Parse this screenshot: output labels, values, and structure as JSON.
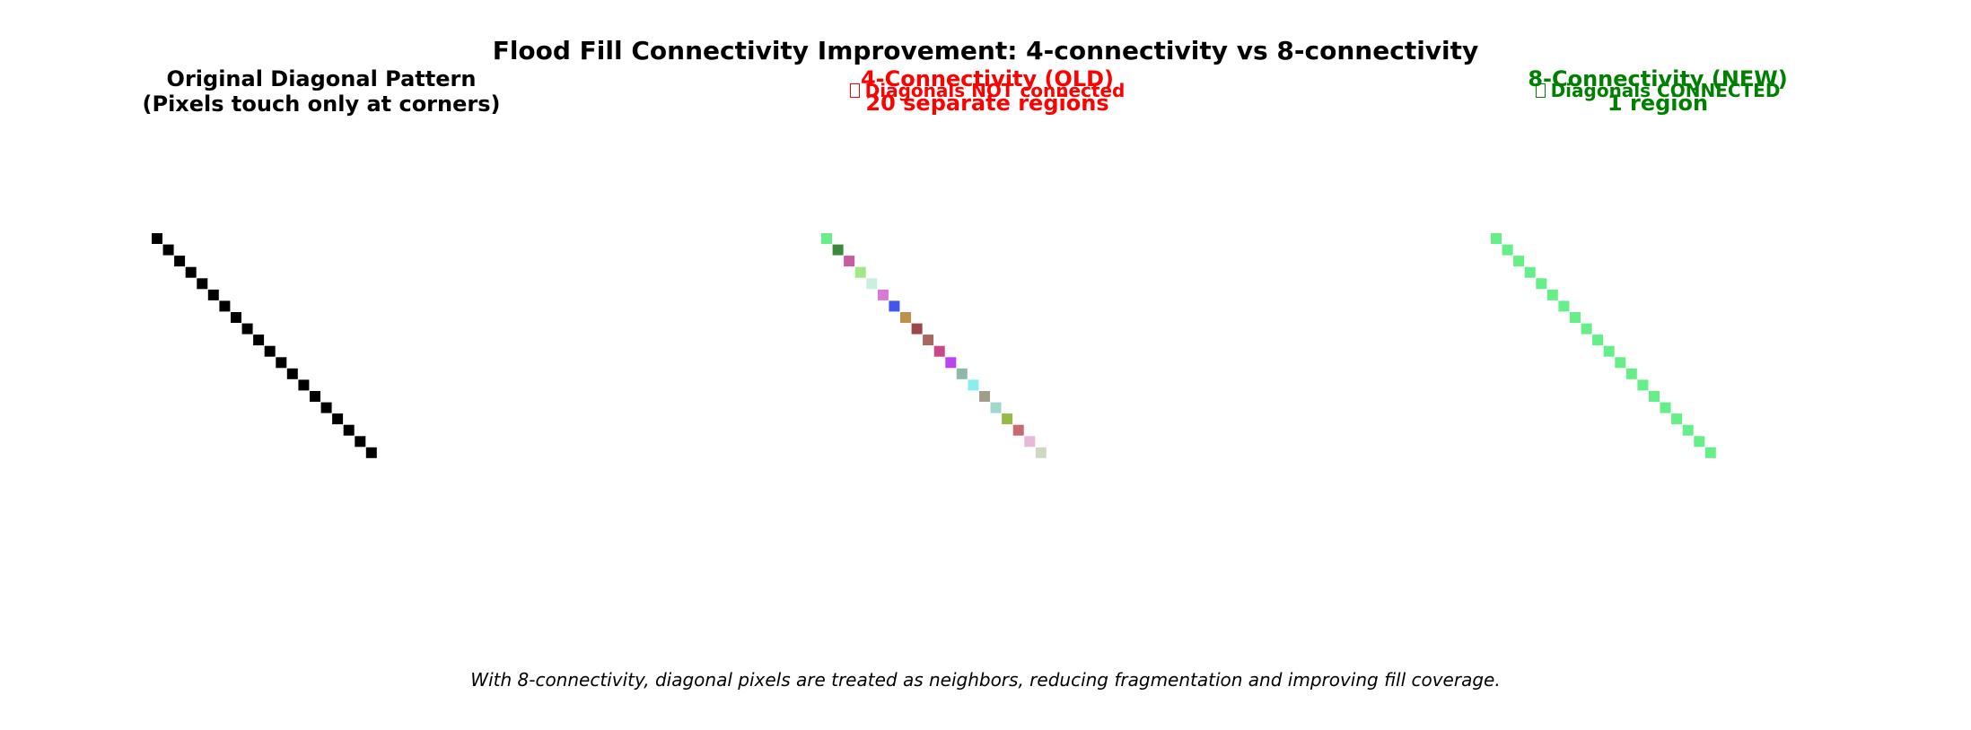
{
  "suptitle": "Flood Fill Connectivity Improvement: 4-connectivity vs 8-connectivity",
  "panels": [
    {
      "title_line1": "Original Diagonal Pattern",
      "title_line2": "(Pixels touch only at corners)",
      "title_color": "#000000",
      "pixel_colors": [
        "#000000"
      ]
    },
    {
      "title_line1": "4-Connectivity (OLD)",
      "status": "Diagonals NOT connected",
      "regions": "20 separate regions",
      "title_color": "#ff0000",
      "pixel_colors": [
        "#66ee88",
        "#3a8a3a",
        "#c85ca0",
        "#a0e888",
        "#c8f0e0",
        "#d878d8",
        "#4455ee",
        "#c0904a",
        "#9a4848",
        "#a86860",
        "#c84888",
        "#bb44ee",
        "#90b8a8",
        "#88eef0",
        "#a0a088",
        "#a0d8d0",
        "#98b848",
        "#c86870",
        "#e8b8d8",
        "#d0d8c0"
      ]
    },
    {
      "title_line1": "8-Connectivity (NEW)",
      "status": "Diagonals CONNECTED",
      "regions": "1 region",
      "title_color": "#008000",
      "pixel_colors": [
        "#66ee88"
      ]
    }
  ],
  "grid": {
    "rows": 20,
    "cols": 20
  },
  "footer": "With 8-connectivity, diagonal pixels are treated as neighbors, reducing fragmentation and improving fill coverage."
}
